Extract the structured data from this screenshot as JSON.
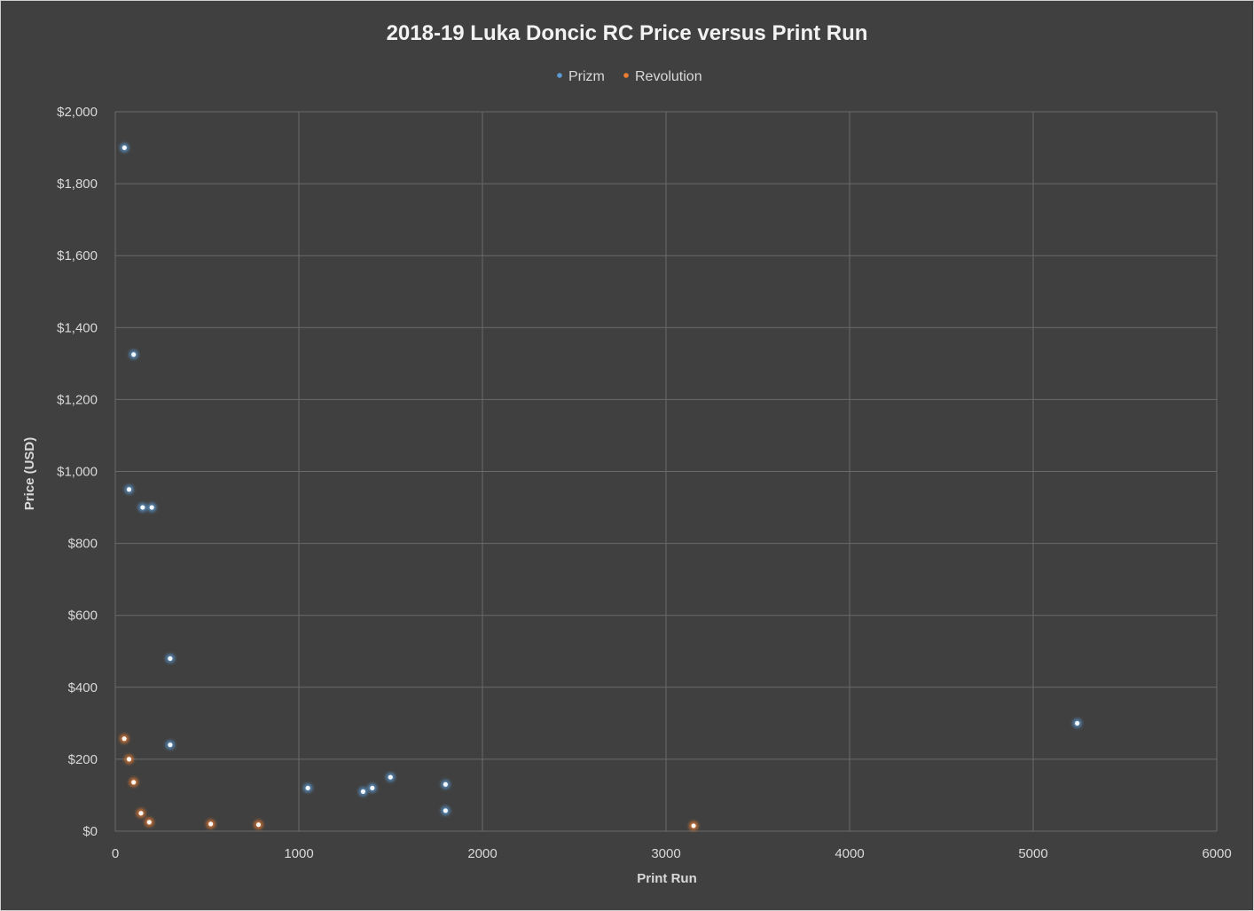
{
  "chart_data": {
    "type": "scatter",
    "title": "2018-19 Luka Doncic RC Price versus Print Run",
    "xlabel": "Print Run",
    "ylabel": "Price (USD)",
    "xlim": [
      0,
      6000
    ],
    "ylim": [
      0,
      2000
    ],
    "x_ticks": [
      0,
      1000,
      2000,
      3000,
      4000,
      5000,
      6000
    ],
    "x_tick_labels": [
      "0",
      "1000",
      "2000",
      "3000",
      "4000",
      "5000",
      "6000"
    ],
    "y_ticks": [
      0,
      200,
      400,
      600,
      800,
      1000,
      1200,
      1400,
      1600,
      1800,
      2000
    ],
    "y_tick_labels": [
      "$0",
      "$200",
      "$400",
      "$600",
      "$800",
      "$1,000",
      "$1,200",
      "$1,400",
      "$1,600",
      "$1,800",
      "$2,000"
    ],
    "grid": true,
    "legend_position": "top-center",
    "series": [
      {
        "name": "Prizm",
        "color": "#5b9bd5",
        "points": [
          {
            "x": 50,
            "y": 1900
          },
          {
            "x": 100,
            "y": 1325
          },
          {
            "x": 75,
            "y": 950
          },
          {
            "x": 149,
            "y": 900
          },
          {
            "x": 199,
            "y": 900
          },
          {
            "x": 299,
            "y": 480
          },
          {
            "x": 299,
            "y": 240
          },
          {
            "x": 1049,
            "y": 120
          },
          {
            "x": 1350,
            "y": 110
          },
          {
            "x": 1400,
            "y": 120
          },
          {
            "x": 1499,
            "y": 150
          },
          {
            "x": 1799,
            "y": 130
          },
          {
            "x": 1799,
            "y": 57
          },
          {
            "x": 5240,
            "y": 300
          }
        ]
      },
      {
        "name": "Revolution",
        "color": "#ed7d31",
        "points": [
          {
            "x": 49,
            "y": 257
          },
          {
            "x": 75,
            "y": 200
          },
          {
            "x": 100,
            "y": 136
          },
          {
            "x": 140,
            "y": 50
          },
          {
            "x": 185,
            "y": 25
          },
          {
            "x": 520,
            "y": 20
          },
          {
            "x": 780,
            "y": 18
          },
          {
            "x": 3150,
            "y": 15
          }
        ]
      }
    ]
  }
}
